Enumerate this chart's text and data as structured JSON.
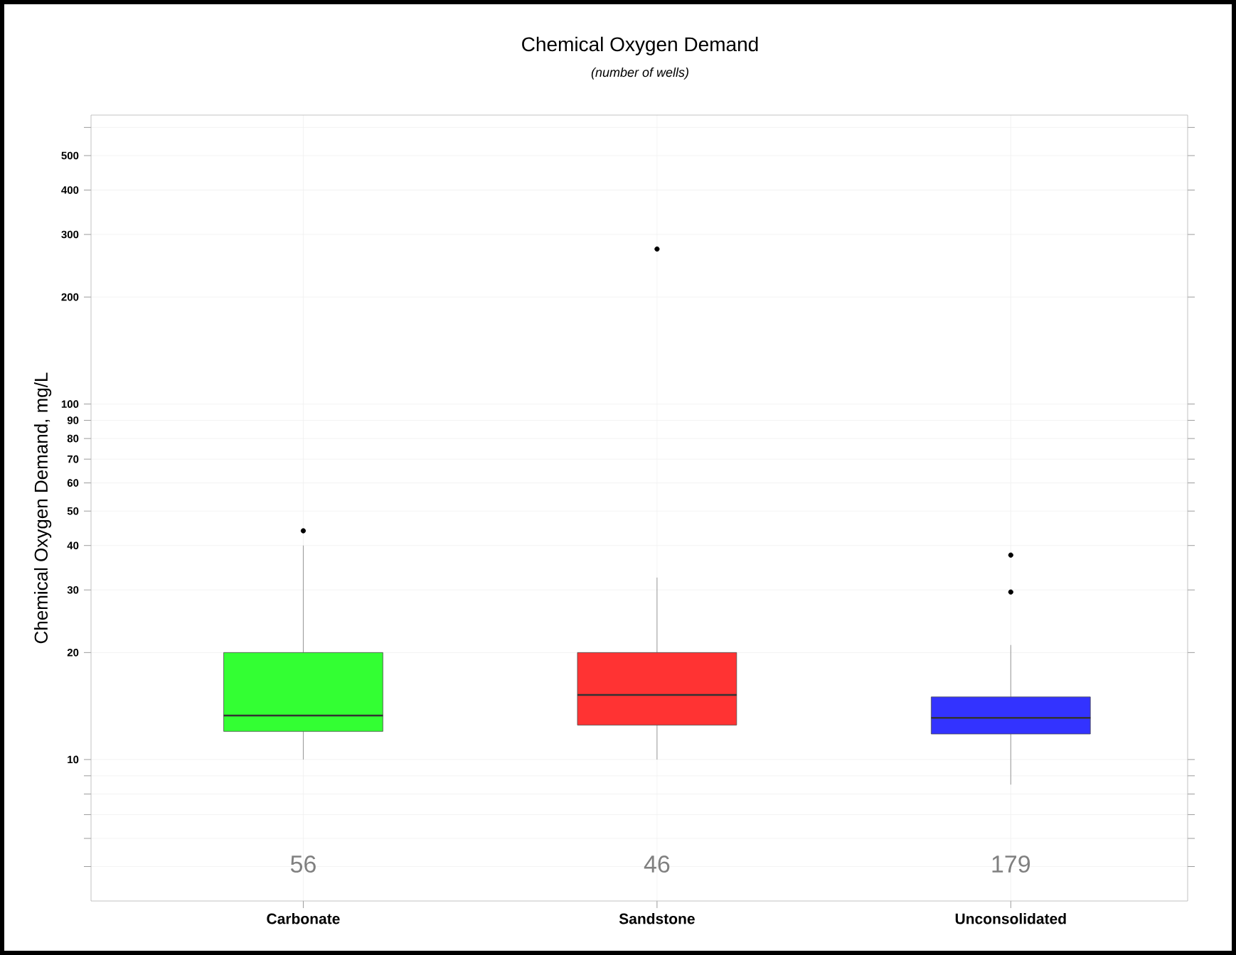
{
  "chart_data": {
    "type": "box",
    "title": "Chemical Oxygen Demand",
    "subtitle": "*(number of wells)*",
    "ylabel": "Chemical Oxygen Demand,  mg/L",
    "categories": [
      "Carbonate",
      "Sandstone",
      "Unconsolidated"
    ],
    "colors": [
      "#33ff33",
      "#ff3333",
      "#3333ff"
    ],
    "boxes": [
      {
        "low": 10,
        "q1": 12,
        "median": 13.3,
        "q3": 20,
        "high": 40,
        "outliers": [
          44
        ]
      },
      {
        "low": 10,
        "q1": 12.5,
        "median": 15.2,
        "q3": 20,
        "high": 32.5,
        "outliers": [
          273
        ]
      },
      {
        "low": 8.5,
        "q1": 11.8,
        "median": 13.1,
        "q3": 15,
        "high": 21,
        "outliers": [
          29.6,
          37.6
        ]
      }
    ],
    "log": "y",
    "ylim": [
      4,
      650
    ],
    "yticks": [
      {
        "value": 5,
        "label": null
      },
      {
        "value": 6,
        "label": null
      },
      {
        "value": 7,
        "label": null
      },
      {
        "value": 8,
        "label": null
      },
      {
        "value": 9,
        "label": null
      },
      10,
      20,
      30,
      40,
      50,
      60,
      70,
      80,
      90,
      100,
      200,
      300,
      400,
      500,
      {
        "value": 600,
        "label": null
      }
    ],
    "grid": true,
    "annotations": [
      "56",
      "46",
      "179"
    ]
  }
}
